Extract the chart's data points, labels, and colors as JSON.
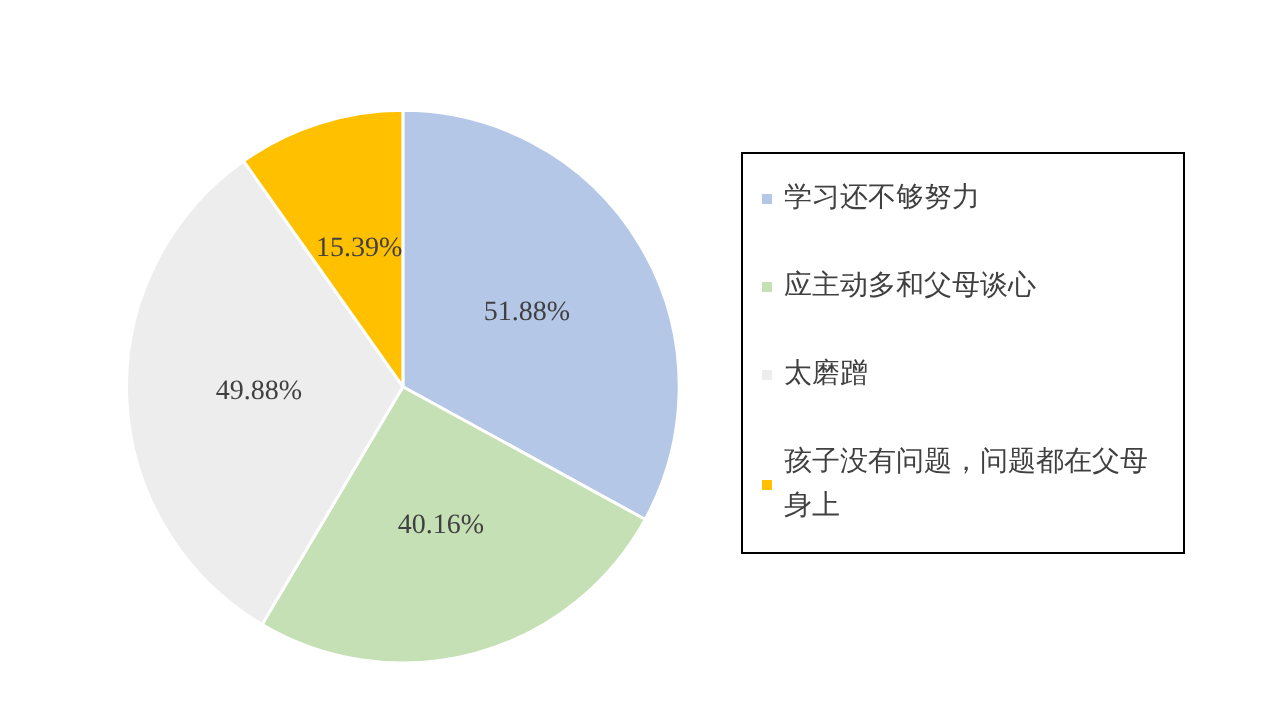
{
  "chart_data": {
    "type": "pie",
    "categories": [
      "学习还不够努力",
      "应主动多和父母谈心",
      "太磨蹭",
      "孩子没有问题，问题都在父母身上"
    ],
    "values": [
      51.88,
      40.16,
      49.88,
      15.39
    ],
    "colors": [
      "#b4c7e7",
      "#c5e0b4",
      "#ededed",
      "#ffc000"
    ],
    "value_labels": [
      "51.88%",
      "40.16%",
      "49.88%",
      "15.39%"
    ],
    "legend": "right"
  }
}
